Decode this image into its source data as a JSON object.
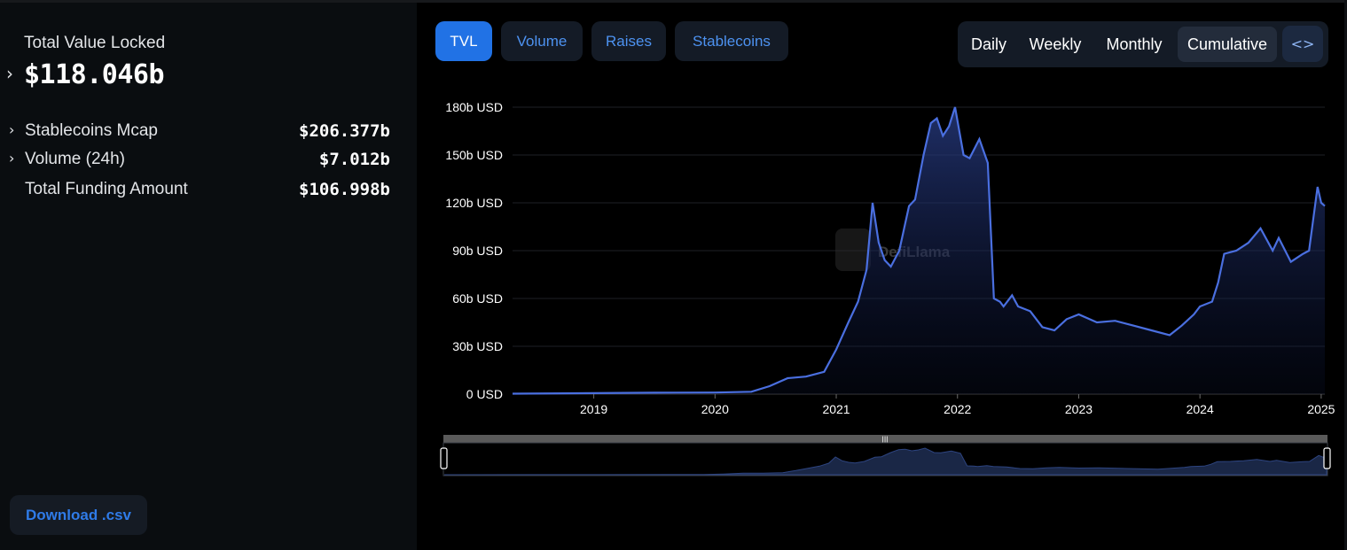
{
  "summary": {
    "tvl_label": "Total Value Locked",
    "tvl_value": "$118.046b",
    "metrics": [
      {
        "label": "Stablecoins Mcap",
        "value": "$206.377b",
        "expandable": true
      },
      {
        "label": "Volume (24h)",
        "value": "$7.012b",
        "expandable": true
      },
      {
        "label": "Total Funding Amount",
        "value": "$106.998b",
        "expandable": false
      }
    ],
    "download_label": "Download .csv"
  },
  "tabs": [
    "TVL",
    "Volume",
    "Raises",
    "Stablecoins"
  ],
  "active_tab": "TVL",
  "periods": [
    "Daily",
    "Weekly",
    "Monthly",
    "Cumulative"
  ],
  "selected_period": "Cumulative",
  "embed_icon": "code-icon",
  "watermark": "DefiLlama",
  "colors": {
    "accent": "#2172e5",
    "line": "#4a6fe0",
    "background": "#000000",
    "panel": "#0a0d10"
  },
  "chart_data": {
    "type": "area",
    "y_unit": "USD",
    "y_ticks": [
      "0 USD",
      "30b USD",
      "60b USD",
      "90b USD",
      "120b USD",
      "150b USD",
      "180b USD"
    ],
    "x_ticks": [
      "2019",
      "2020",
      "2021",
      "2022",
      "2023",
      "2024",
      "2025"
    ],
    "ylim": [
      0,
      180
    ],
    "grid": true,
    "series": [
      {
        "x": [
          2018.33,
          2019.0,
          2019.5,
          2020.0,
          2020.3,
          2020.45,
          2020.6,
          2020.75,
          2020.9,
          2021.0,
          2021.1,
          2021.18,
          2021.25,
          2021.3,
          2021.35,
          2021.4,
          2021.45,
          2021.52,
          2021.6,
          2021.65,
          2021.72,
          2021.78,
          2021.83,
          2021.88,
          2021.93,
          2021.98,
          2022.05,
          2022.1,
          2022.18,
          2022.25,
          2022.3,
          2022.35,
          2022.38,
          2022.45,
          2022.5,
          2022.6,
          2022.7,
          2022.8,
          2022.9,
          2023.0,
          2023.15,
          2023.3,
          2023.45,
          2023.6,
          2023.75,
          2023.85,
          2023.95,
          2024.0,
          2024.1,
          2024.15,
          2024.2,
          2024.3,
          2024.4,
          2024.5,
          2024.6,
          2024.65,
          2024.75,
          2024.85,
          2024.9,
          2024.97,
          2025.0,
          2025.03
        ],
        "y": [
          0.3,
          0.6,
          0.9,
          1.0,
          1.5,
          5,
          10,
          11,
          14,
          28,
          45,
          58,
          78,
          120,
          95,
          84,
          80,
          90,
          118,
          122,
          150,
          170,
          173,
          162,
          168,
          180,
          150,
          148,
          160,
          145,
          60,
          58,
          55,
          62,
          55,
          52,
          42,
          40,
          47,
          50,
          45,
          46,
          43,
          40,
          37,
          43,
          50,
          55,
          58,
          70,
          88,
          90,
          95,
          104,
          90,
          98,
          83,
          88,
          90,
          130,
          120,
          118
        ]
      }
    ]
  }
}
